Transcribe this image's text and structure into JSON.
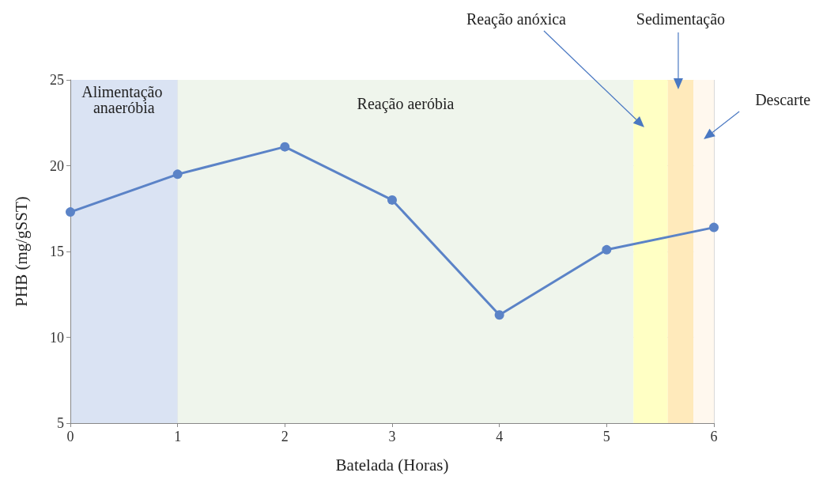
{
  "chart_data": {
    "type": "line",
    "xlabel": "Batelada (Horas)",
    "ylabel": "PHB (mg/gSST)",
    "x": [
      0,
      1,
      2,
      3,
      4,
      5,
      6
    ],
    "series": [
      {
        "color": "#5b83c7",
        "values": [
          17.3,
          19.5,
          21.1,
          18.0,
          11.3,
          15.1,
          16.4
        ]
      }
    ],
    "xlim": [
      0,
      6
    ],
    "xticks": [
      0,
      1,
      2,
      3,
      4,
      5,
      6
    ],
    "ylim": [
      5,
      25
    ],
    "yticks": [
      5,
      10,
      15,
      20,
      25
    ],
    "grid": true,
    "marker": "circle",
    "line_style": "solid",
    "bands": [
      {
        "axis": "x",
        "from": 0,
        "to": 1,
        "label": "Alimentação anaeróbia",
        "color": "#dae3f3"
      },
      {
        "axis": "x",
        "from": 1,
        "to": 5.25,
        "label": "Reação aeróbia",
        "color": "#eff5ec"
      },
      {
        "axis": "x",
        "from": 5.25,
        "to": 5.57,
        "label": "Reação anóxica",
        "color": "#ffffc4"
      },
      {
        "axis": "x",
        "from": 5.57,
        "to": 5.81,
        "label": "Sedimentação",
        "color": "#ffeabb"
      },
      {
        "axis": "x",
        "from": 5.81,
        "to": 6,
        "label": "Descarte",
        "color": "#fff8ee"
      }
    ]
  }
}
